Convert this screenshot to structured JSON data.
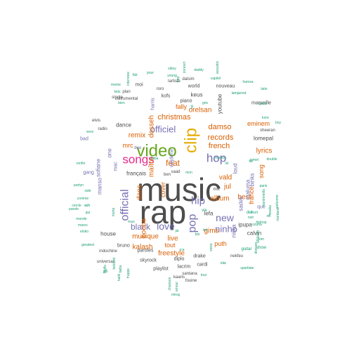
{
  "palette": {
    "gray": "#4d4d4d",
    "teal": "#1b9e77",
    "orange": "#d95f02",
    "purple": "#7570b3",
    "pink": "#e7298a",
    "green": "#66a61e",
    "gold": "#e6ab02"
  },
  "words": [
    {
      "text": "music",
      "c": "gray",
      "s": 46
    },
    {
      "text": "rap",
      "c": "gray",
      "s": 46
    },
    {
      "text": "video",
      "c": "green",
      "s": 24
    },
    {
      "text": "clip",
      "c": "gold",
      "s": 24,
      "r": -90
    },
    {
      "text": "songs",
      "c": "pink",
      "s": 17
    },
    {
      "text": "official",
      "c": "purple",
      "s": 16,
      "r": -90
    },
    {
      "text": "hop",
      "c": "purple",
      "s": 17
    },
    {
      "text": "hip",
      "c": "purple",
      "s": 15
    },
    {
      "text": "pop",
      "c": "purple",
      "s": 16,
      "r": -90
    },
    {
      "text": "officiel",
      "c": "purple",
      "s": 13
    },
    {
      "text": "love",
      "c": "purple",
      "s": 14
    },
    {
      "text": "new",
      "c": "purple",
      "s": 14
    },
    {
      "text": "ninho",
      "c": "purple",
      "s": 13
    },
    {
      "text": "black",
      "c": "purple",
      "s": 12
    },
    {
      "text": "christmas",
      "c": "orange",
      "s": 11
    },
    {
      "text": "damso",
      "c": "orange",
      "s": 11
    },
    {
      "text": "records",
      "c": "orange",
      "s": 11
    },
    {
      "text": "french",
      "c": "orange",
      "s": 11
    },
    {
      "text": "remix",
      "c": "orange",
      "s": 10
    },
    {
      "text": "feat",
      "c": "orange",
      "s": 12
    },
    {
      "text": "vald",
      "c": "orange",
      "s": 10
    },
    {
      "text": "album",
      "c": "orange",
      "s": 10
    },
    {
      "text": "live",
      "c": "orange",
      "s": 10
    },
    {
      "text": "musique",
      "c": "orange",
      "s": 10
    },
    {
      "text": "kalash",
      "c": "orange",
      "s": 10
    },
    {
      "text": "freestyle",
      "c": "orange",
      "s": 10
    },
    {
      "text": "gims",
      "c": "orange",
      "s": 10
    },
    {
      "text": "lyrics",
      "c": "orange",
      "s": 10
    },
    {
      "text": "best",
      "c": "orange",
      "s": 10
    },
    {
      "text": "jul",
      "c": "orange",
      "s": 10
    },
    {
      "text": "orelsan",
      "c": "orange",
      "s": 10
    },
    {
      "text": "eminem",
      "c": "orange",
      "s": 9
    },
    {
      "text": "fally",
      "c": "orange",
      "s": 9
    },
    {
      "text": "dans",
      "c": "orange",
      "s": 10,
      "r": -90
    },
    {
      "text": "booba",
      "c": "orange",
      "s": 10,
      "r": -90
    },
    {
      "text": "maître",
      "c": "orange",
      "s": 10,
      "r": -90
    },
    {
      "text": "cover",
      "c": "orange",
      "s": 9,
      "r": -90
    },
    {
      "text": "dosseh",
      "c": "orange",
      "s": 10,
      "r": -90
    },
    {
      "text": "france",
      "c": "orange",
      "s": 9,
      "r": -90
    },
    {
      "text": "puth",
      "c": "orange",
      "s": 9
    },
    {
      "text": "tout",
      "c": "orange",
      "s": 9
    },
    {
      "text": "song",
      "c": "orange",
      "s": 9,
      "r": -90
    },
    {
      "text": "mrc",
      "c": "orange",
      "s": 9
    },
    {
      "text": "dance",
      "c": "gray",
      "s": 8
    },
    {
      "text": "français",
      "c": "gray",
      "s": 8
    },
    {
      "text": "lefa",
      "c": "gray",
      "s": 8
    },
    {
      "text": "youtube",
      "c": "gray",
      "s": 8,
      "r": -90
    },
    {
      "text": "lomepal",
      "c": "gray",
      "s": 8
    },
    {
      "text": "keus",
      "c": "gray",
      "s": 8
    },
    {
      "text": "ipupa",
      "c": "gray",
      "s": 8
    },
    {
      "text": "calvin",
      "c": "gray",
      "s": 8
    },
    {
      "text": "house",
      "c": "gray",
      "s": 8
    },
    {
      "text": "bruno",
      "c": "gray",
      "s": 7
    },
    {
      "text": "paroles",
      "c": "gray",
      "s": 7
    },
    {
      "text": "skyrock",
      "c": "gray",
      "s": 7
    },
    {
      "text": "playlist",
      "c": "gray",
      "s": 7
    },
    {
      "text": "lacrim",
      "c": "gray",
      "s": 7
    },
    {
      "text": "cardi",
      "c": "gray",
      "s": 7
    },
    {
      "text": "piano",
      "c": "gray",
      "s": 7
    },
    {
      "text": "world",
      "c": "gray",
      "s": 7
    },
    {
      "text": "nouveau",
      "c": "gray",
      "s": 7
    },
    {
      "text": "marseille",
      "c": "gray",
      "s": 7
    },
    {
      "text": "drake",
      "c": "gray",
      "s": 7
    },
    {
      "text": "diplo",
      "c": "gray",
      "s": 7
    },
    {
      "text": "kofs",
      "c": "gray",
      "s": 7
    },
    {
      "text": "moi",
      "c": "gray",
      "s": 7
    },
    {
      "text": "sheeran",
      "c": "gray",
      "s": 6
    },
    {
      "text": "indochine",
      "c": "gray",
      "s": 6
    },
    {
      "text": "universal",
      "c": "gray",
      "s": 6
    },
    {
      "text": "santana",
      "c": "gray",
      "s": 6
    },
    {
      "text": "kaaris",
      "c": "gray",
      "s": 6
    },
    {
      "text": "radio",
      "c": "gray",
      "s": 6
    },
    {
      "text": "elvis",
      "c": "gray",
      "s": 6
    },
    {
      "text": "single",
      "c": "gray",
      "s": 6
    },
    {
      "text": "instrumental",
      "c": "gray",
      "s": 6
    },
    {
      "text": "lartiste",
      "c": "gray",
      "s": 6
    },
    {
      "text": "dalsim",
      "c": "gray",
      "s": 6
    },
    {
      "text": "fouine",
      "c": "gray",
      "s": 6
    },
    {
      "text": "nekfeu",
      "c": "gray",
      "s": 6
    },
    {
      "text": "roro",
      "c": "gray",
      "s": 6
    },
    {
      "text": "plan",
      "c": "gray",
      "s": 6
    },
    {
      "text": "mix",
      "c": "gray",
      "s": 6
    },
    {
      "text": "ben",
      "c": "gray",
      "s": 6
    },
    {
      "text": "saad",
      "c": "gray",
      "s": 6
    },
    {
      "text": "binks",
      "c": "purple",
      "s": 8,
      "r": -90
    },
    {
      "text": "maluma",
      "c": "purple",
      "s": 8,
      "r": -90
    },
    {
      "text": "loud",
      "c": "purple",
      "s": 8,
      "r": -90
    },
    {
      "text": "sadek",
      "c": "purple",
      "s": 8,
      "r": -90
    },
    {
      "text": "niska",
      "c": "purple",
      "s": 8,
      "r": -90
    },
    {
      "text": "sofiane",
      "c": "purple",
      "s": 8,
      "r": -90
    },
    {
      "text": "manso",
      "c": "purple",
      "s": 8,
      "r": -90
    },
    {
      "text": "harris",
      "c": "purple",
      "s": 7,
      "r": -90
    },
    {
      "text": "wejdene",
      "c": "purple",
      "s": 7,
      "r": -90
    },
    {
      "text": "one",
      "c": "purple",
      "s": 8,
      "r": -90
    },
    {
      "text": "mac",
      "c": "purple",
      "s": 7,
      "r": -90
    },
    {
      "text": "que",
      "c": "purple",
      "s": 7
    },
    {
      "text": "gang",
      "c": "purple",
      "s": 7
    },
    {
      "text": "bad",
      "c": "purple",
      "s": 7
    },
    {
      "text": "dua",
      "c": "purple",
      "s": 6
    },
    {
      "text": "stream",
      "c": "teal",
      "s": 6,
      "r": -90
    },
    {
      "text": "def",
      "c": "teal",
      "s": 6
    },
    {
      "text": "show",
      "c": "teal",
      "s": 6
    },
    {
      "text": "guitar",
      "c": "teal",
      "s": 6
    },
    {
      "text": "tour",
      "c": "teal",
      "s": 5
    },
    {
      "text": "spartiate",
      "c": "teal",
      "s": 5
    },
    {
      "text": "vie",
      "c": "teal",
      "s": 6
    },
    {
      "text": "chanson",
      "c": "teal",
      "s": 5,
      "r": -90
    },
    {
      "text": "amour",
      "c": "teal",
      "s": 5,
      "r": -90
    },
    {
      "text": "minaj",
      "c": "teal",
      "s": 5
    },
    {
      "text": "frappe",
      "c": "teal",
      "s": 5,
      "r": -90
    },
    {
      "text": "bella",
      "c": "teal",
      "s": 5,
      "r": -90
    },
    {
      "text": "keblack",
      "c": "teal",
      "s": 5,
      "r": -90
    },
    {
      "text": "hatik",
      "c": "teal",
      "s": 5,
      "r": -90
    },
    {
      "text": "greatest",
      "c": "teal",
      "s": 5
    },
    {
      "text": "eloko",
      "c": "teal",
      "s": 5
    },
    {
      "text": "maroc",
      "c": "teal",
      "s": 5
    },
    {
      "text": "monde",
      "c": "teal",
      "s": 5
    },
    {
      "text": "cercle",
      "c": "teal",
      "s": 5
    },
    {
      "text": "parole",
      "c": "teal",
      "s": 5
    },
    {
      "text": "comme",
      "c": "teal",
      "s": 5
    },
    {
      "text": "sale",
      "c": "teal",
      "s": 5
    },
    {
      "text": "qui",
      "c": "teal",
      "s": 5
    },
    {
      "text": "sch",
      "c": "teal",
      "s": 5
    },
    {
      "text": "vevo",
      "c": "teal",
      "s": 5
    },
    {
      "text": "kids",
      "c": "teal",
      "s": 5
    },
    {
      "text": "meme",
      "c": "teal",
      "s": 5
    },
    {
      "text": "bien",
      "c": "teal",
      "s": 5
    },
    {
      "text": "pour",
      "c": "teal",
      "s": 5
    },
    {
      "text": "siboy",
      "c": "teal",
      "s": 5
    },
    {
      "text": "young",
      "c": "teal",
      "s": 5
    },
    {
      "text": "daddy",
      "c": "teal",
      "s": 5
    },
    {
      "text": "capitol",
      "c": "teal",
      "s": 5
    },
    {
      "text": "concert",
      "c": "teal",
      "s": 5,
      "r": -90
    },
    {
      "text": "acoustic",
      "c": "teal",
      "s": 5,
      "r": -90
    },
    {
      "text": "lamjarred",
      "c": "teal",
      "s": 5
    },
    {
      "text": "hamza",
      "c": "teal",
      "s": 5
    },
    {
      "text": "latin",
      "c": "teal",
      "s": 5
    },
    {
      "text": "gods",
      "c": "teal",
      "s": 5
    },
    {
      "text": "kore",
      "c": "teal",
      "s": 5
    },
    {
      "text": "boy",
      "c": "teal",
      "s": 5
    },
    {
      "text": "welcome",
      "c": "teal",
      "s": 5,
      "r": -90
    },
    {
      "text": "montana",
      "c": "teal",
      "s": 5,
      "r": -90
    },
    {
      "text": "mwaka",
      "c": "teal",
      "s": 5,
      "r": -90
    },
    {
      "text": "marshmello",
      "c": "teal",
      "s": 5,
      "r": -90
    },
    {
      "text": "hiphop",
      "c": "teal",
      "s": 5
    },
    {
      "text": "kim",
      "c": "teal",
      "s": 5
    },
    {
      "text": "division",
      "c": "teal",
      "s": 5,
      "r": -90
    },
    {
      "text": "moha",
      "c": "teal",
      "s": 5,
      "r": -90
    },
    {
      "text": "idar",
      "c": "teal",
      "s": 5
    },
    {
      "text": "voice",
      "c": "teal",
      "s": 5,
      "r": -90
    },
    {
      "text": "rca",
      "c": "teal",
      "s": 5
    },
    {
      "text": "pnl",
      "c": "teal",
      "s": 5
    },
    {
      "text": "bigflo",
      "c": "teal",
      "s": 5,
      "r": -90
    },
    {
      "text": "tous",
      "c": "teal",
      "s": 5
    },
    {
      "text": "trap",
      "c": "teal",
      "s": 5,
      "r": -90
    },
    {
      "text": "gris",
      "c": "teal",
      "s": 5
    },
    {
      "text": "hit",
      "c": "teal",
      "s": 5,
      "r": -90
    },
    {
      "text": "interview",
      "c": "teal",
      "s": 5,
      "r": -90
    },
    {
      "text": "fab",
      "c": "teal",
      "s": 5
    },
    {
      "text": "koba",
      "c": "teal",
      "s": 5
    },
    {
      "text": "mon",
      "c": "teal",
      "s": 5
    },
    {
      "text": "oli",
      "c": "teal",
      "s": 5
    },
    {
      "text": "musica",
      "c": "teal",
      "s": 5
    },
    {
      "text": "lsd",
      "c": "teal",
      "s": 5
    },
    {
      "text": "bts",
      "c": "teal",
      "s": 5
    },
    {
      "text": "jai",
      "c": "teal",
      "s": 5
    },
    {
      "text": "sch",
      "c": "teal",
      "s": 5
    },
    {
      "text": "ronfio",
      "c": "teal",
      "s": 5
    },
    {
      "text": "partyn",
      "c": "teal",
      "s": 5
    },
    {
      "text": "double",
      "c": "teal",
      "s": 5
    },
    {
      "text": "fal",
      "c": "teal",
      "s": 5
    },
    {
      "text": "noir",
      "c": "teal",
      "s": 5
    },
    {
      "text": "mort",
      "c": "teal",
      "s": 5
    },
    {
      "text": "paris",
      "c": "teal",
      "s": 5
    },
    {
      "text": "jamel",
      "c": "teal",
      "s": 5
    },
    {
      "text": "ozuna",
      "c": "teal",
      "s": 5
    },
    {
      "text": "nil",
      "c": "teal",
      "s": 5
    }
  ]
}
